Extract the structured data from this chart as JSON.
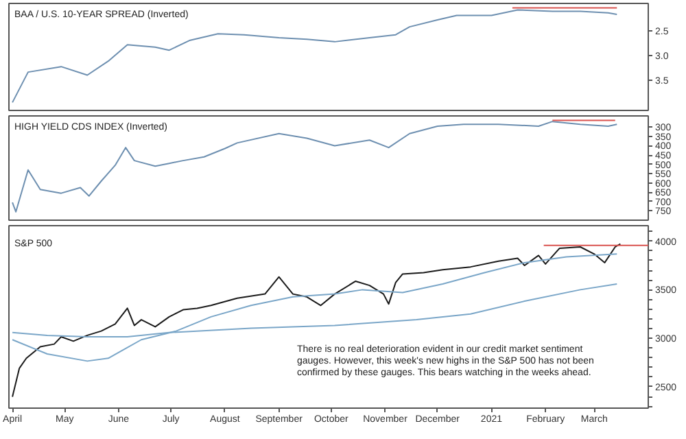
{
  "chart_data": [
    {
      "type": "line",
      "title": "BAA / U.S. 10-YEAR SPREAD (Inverted)",
      "xlim": [
        "2020-03-30",
        "2021-04-01"
      ],
      "ylim": [
        4.1,
        1.95
      ],
      "yticks": [
        2.5,
        {
          "value": 3,
          "label": "3.0"
        },
        3.5
      ],
      "tick_labels": "y",
      "x": [
        "2020-04-01",
        "2020-04-10",
        "2020-04-29",
        "2020-05-14",
        "2020-05-26",
        "2020-06-06",
        "2020-06-22",
        "2020-06-30",
        "2020-07-12",
        "2020-07-28",
        "2020-08-12",
        "2020-09-01",
        "2020-09-17",
        "2020-10-03",
        "2020-10-23",
        "2020-11-07",
        "2020-11-15",
        "2020-12-01",
        "2020-12-12",
        "2021-01-01",
        "2021-01-16",
        "2021-02-05",
        "2021-02-21",
        "2021-03-09",
        "2021-03-14"
      ],
      "series": [
        {
          "color": "#6d8fb0",
          "values": [
            3.94,
            3.33,
            3.22,
            3.39,
            3.11,
            2.78,
            2.83,
            2.89,
            2.69,
            2.56,
            2.58,
            2.64,
            2.67,
            2.72,
            2.64,
            2.58,
            2.42,
            2.28,
            2.19,
            2.19,
            2.08,
            2.11,
            2.11,
            2.14,
            2.17
          ]
        },
        {
          "color": "#d9534f",
          "x": [
            "2021-01-13",
            "2021-03-14"
          ],
          "values": [
            2.04,
            2.04
          ]
        }
      ]
    },
    {
      "type": "line",
      "title": "HIGH YIELD CDS INDEX (Inverted)",
      "xlim": [
        "2020-03-30",
        "2021-04-01"
      ],
      "ylim": [
        800,
        240
      ],
      "yticks": [
        300,
        350,
        400,
        450,
        500,
        550,
        600,
        650,
        700,
        750
      ],
      "tick_labels": "y",
      "x": [
        "2020-04-01",
        "2020-04-03",
        "2020-04-10",
        "2020-04-17",
        "2020-04-29",
        "2020-05-10",
        "2020-05-15",
        "2020-05-22",
        "2020-05-30",
        "2020-06-05",
        "2020-06-10",
        "2020-06-22",
        "2020-06-30",
        "2020-07-08",
        "2020-07-20",
        "2020-08-01",
        "2020-08-08",
        "2020-09-01",
        "2020-09-17",
        "2020-10-03",
        "2020-10-23",
        "2020-11-03",
        "2020-11-15",
        "2020-12-01",
        "2020-12-16",
        "2021-01-05",
        "2021-01-28",
        "2021-02-05",
        "2021-02-21",
        "2021-03-09",
        "2021-03-14"
      ],
      "series": [
        {
          "color": "#6d8fb0",
          "values": [
            705,
            755,
            530,
            635,
            655,
            625,
            670,
            590,
            505,
            410,
            480,
            510,
            495,
            480,
            460,
            415,
            385,
            335,
            360,
            400,
            370,
            410,
            335,
            295,
            285,
            285,
            295,
            270,
            285,
            295,
            285
          ]
        },
        {
          "color": "#d9534f",
          "x": [
            "2021-02-05",
            "2021-03-13"
          ],
          "values": [
            264,
            264
          ]
        }
      ]
    },
    {
      "type": "line",
      "title": "S&P 500",
      "xlim": [
        "2020-03-30",
        "2021-04-01"
      ],
      "ylim": [
        2280,
        4160
      ],
      "yticks": [
        {
          "value": 2300,
          "label": null
        },
        {
          "value": 2400,
          "label": null
        },
        2500,
        {
          "value": 2600,
          "label": null
        },
        {
          "value": 2700,
          "label": null
        },
        {
          "value": 2800,
          "label": null
        },
        {
          "value": 2900,
          "label": null
        },
        3000,
        {
          "value": 3100,
          "label": null
        },
        {
          "value": 3200,
          "label": null
        },
        {
          "value": 3300,
          "label": null
        },
        {
          "value": 3400,
          "label": null
        },
        3500,
        {
          "value": 3600,
          "label": null
        },
        {
          "value": 3700,
          "label": null
        },
        {
          "value": 3800,
          "label": null
        },
        {
          "value": 3900,
          "label": null
        },
        4000,
        {
          "value": 4100,
          "label": null
        }
      ],
      "xticks": [
        {
          "value": "2020-04-01",
          "label": "April"
        },
        {
          "value": "2020-05-01",
          "label": "May"
        },
        {
          "value": "2020-06-01",
          "label": "June"
        },
        {
          "value": "2020-07-01",
          "label": "July"
        },
        {
          "value": "2020-08-01",
          "label": "August"
        },
        {
          "value": "2020-09-01",
          "label": "September"
        },
        {
          "value": "2020-10-01",
          "label": "October"
        },
        {
          "value": "2020-11-01",
          "label": "November"
        },
        {
          "value": "2020-12-01",
          "label": "December"
        },
        {
          "value": "2021-01-01",
          "label": "2021"
        },
        {
          "value": "2021-02-01",
          "label": "February"
        },
        {
          "value": "2021-03-01",
          "label": "March"
        }
      ],
      "annotations": [
        "There is no real deterioration evident in our credit market sentiment gauges. However, this week's new highs in the S&P 500 has not been confirmed by these gauges. This bears watching in the weeks ahead."
      ],
      "series": [
        {
          "color": "#1a1a1a",
          "x": [
            "2020-04-01",
            "2020-04-05",
            "2020-04-09",
            "2020-04-17",
            "2020-04-25",
            "2020-04-29",
            "2020-05-06",
            "2020-05-14",
            "2020-05-22",
            "2020-05-30",
            "2020-06-06",
            "2020-06-10",
            "2020-06-14",
            "2020-06-22",
            "2020-06-30",
            "2020-07-08",
            "2020-07-16",
            "2020-07-24",
            "2020-08-08",
            "2020-08-24",
            "2020-09-01",
            "2020-09-09",
            "2020-09-17",
            "2020-09-25",
            "2020-10-03",
            "2020-10-15",
            "2020-10-23",
            "2020-10-31",
            "2020-11-03",
            "2020-11-07",
            "2020-11-11",
            "2020-11-23",
            "2020-12-04",
            "2020-12-20",
            "2021-01-05",
            "2021-01-16",
            "2021-01-20",
            "2021-01-28",
            "2021-02-01",
            "2021-02-09",
            "2021-02-21",
            "2021-03-01",
            "2021-03-07",
            "2021-03-13",
            "2021-03-16"
          ],
          "values": [
            2397,
            2691,
            2794,
            2912,
            2940,
            3015,
            2970,
            3030,
            3074,
            3147,
            3309,
            3132,
            3191,
            3118,
            3221,
            3294,
            3309,
            3338,
            3412,
            3456,
            3632,
            3456,
            3426,
            3338,
            3456,
            3588,
            3544,
            3456,
            3353,
            3574,
            3662,
            3676,
            3706,
            3735,
            3794,
            3824,
            3750,
            3853,
            3765,
            3926,
            3941,
            3868,
            3779,
            3941,
            3971
          ]
        },
        {
          "color": "#7aa6c8",
          "x": [
            "2020-04-01",
            "2020-04-21",
            "2020-05-14",
            "2020-05-26",
            "2020-06-14",
            "2020-07-04",
            "2020-07-24",
            "2020-08-16",
            "2020-09-09",
            "2020-10-03",
            "2020-10-19",
            "2020-11-11",
            "2020-12-04",
            "2020-12-28",
            "2021-01-20",
            "2021-02-13",
            "2021-03-14"
          ],
          "values": [
            2985,
            2838,
            2765,
            2794,
            2985,
            3074,
            3221,
            3338,
            3426,
            3456,
            3500,
            3471,
            3559,
            3676,
            3779,
            3838,
            3868
          ]
        },
        {
          "color": "#7aa6c8",
          "x": [
            "2020-04-01",
            "2020-04-21",
            "2020-05-14",
            "2020-06-06",
            "2020-06-30",
            "2020-08-16",
            "2020-10-03",
            "2020-11-19",
            "2020-12-20",
            "2021-01-20",
            "2021-02-21",
            "2021-03-14"
          ],
          "values": [
            3059,
            3029,
            3015,
            3015,
            3059,
            3103,
            3132,
            3191,
            3250,
            3382,
            3500,
            3559
          ]
        },
        {
          "color": "#d9534f",
          "x": [
            "2021-01-31",
            "2021-04-01"
          ],
          "values": [
            3956,
            3956
          ]
        }
      ]
    }
  ]
}
